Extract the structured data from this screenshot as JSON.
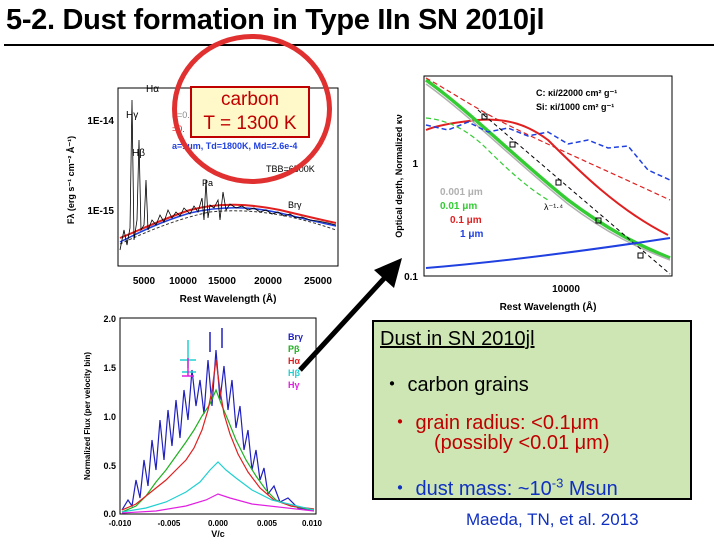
{
  "title": "5-2. Dust formation in Type IIn SN 2010jl",
  "callout": {
    "line1": "carbon",
    "line2": "T = 1300 K"
  },
  "spectrum_panel": {
    "ylabel": "Fλ (erg s⁻¹ cm⁻² Å⁻¹)",
    "xlabel": "Rest Wavelength (Å)",
    "yticks": [
      "1E-14",
      "1E-15"
    ],
    "xticks": [
      "5000",
      "10000",
      "15000",
      "20000",
      "25000"
    ],
    "line_labels": [
      "Hα",
      "Hγ",
      "Hβ",
      "Pa",
      "Brγ"
    ],
    "annotations": [
      "a=0.00",
      "=0.",
      "a=1μm, Td=1800K, Md=2.6e-4",
      "TBB=6500K"
    ]
  },
  "depth_panel": {
    "ylabel": "Optical depth, Normalized κν",
    "xlabel": "Rest Wavelength (Å)",
    "yticks": [
      "1",
      "0.1"
    ],
    "xticks": [
      "10000"
    ],
    "legend_top": [
      "C: κi/22000 cm² g⁻¹",
      "Si: κi/1000 cm² g⁻¹"
    ],
    "size_legend": [
      {
        "label": "0.001 μm",
        "color": "#b0b0b0"
      },
      {
        "label": "0.01 μm",
        "color": "#33cc33"
      },
      {
        "label": "0.1 μm",
        "color": "#e02020"
      },
      {
        "label": "1 μm",
        "color": "#2040e0"
      }
    ],
    "slope_label": "λ⁻¹·⁴"
  },
  "profile_panel": {
    "ylabel": "Normalized Flux (per velocity bin)",
    "xlabel": "V/c",
    "yticks": [
      "2.0",
      "1.5",
      "1.0",
      "0.5",
      "0.0"
    ],
    "xticks": [
      "-0.010",
      "-0.005",
      "0.000",
      "0.005",
      "0.010"
    ],
    "legend": [
      {
        "label": "Brγ",
        "color": "#2020c0"
      },
      {
        "label": "Pβ",
        "color": "#20b020"
      },
      {
        "label": "Hα",
        "color": "#e02020"
      },
      {
        "label": "Hβ",
        "color": "#20d0d0"
      },
      {
        "label": "Hγ",
        "color": "#e020e0"
      }
    ]
  },
  "summary": {
    "heading": "Dust in SN 2010jl",
    "item1": "・ carbon grains",
    "item2": "・ grain radius: <0.1μm",
    "item2b": "(possibly  <0.01 μm)",
    "item3_pre": "・ dust mass: ~10",
    "item3_exp": "-3",
    "item3_unit": " Msun"
  },
  "citation": "Maeda, TN, et al. 2013"
}
